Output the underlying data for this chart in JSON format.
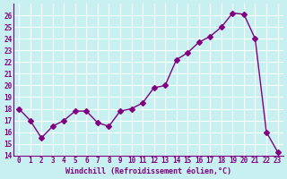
{
  "x": [
    0,
    1,
    2,
    3,
    4,
    5,
    6,
    7,
    8,
    9,
    10,
    11,
    12,
    13,
    14,
    15,
    16,
    17,
    18,
    19,
    20,
    21,
    22,
    23
  ],
  "y": [
    18,
    17,
    15.5,
    16.5,
    17,
    17.8,
    17.8,
    16.8,
    16.5,
    17.8,
    18,
    18.5,
    19.8,
    20,
    22.2,
    22.8,
    23.7,
    24.2,
    25.0,
    26.2,
    26.1,
    24.0,
    16.0,
    14.3
  ],
  "line_color": "#800080",
  "marker": "D",
  "marker_size": 3,
  "bg_color": "#c8f0f0",
  "grid_color": "#ffffff",
  "xlabel": "Windchill (Refroidissement éolien,°C)",
  "xlabel_color": "#800080",
  "ylabel_color": "#800080",
  "tick_color": "#800080",
  "ylim": [
    14,
    27
  ],
  "xlim": [
    -0.5,
    23.5
  ],
  "yticks": [
    14,
    15,
    16,
    17,
    18,
    19,
    20,
    21,
    22,
    23,
    24,
    25,
    26
  ],
  "xticks": [
    0,
    1,
    2,
    3,
    4,
    5,
    6,
    7,
    8,
    9,
    10,
    11,
    12,
    13,
    14,
    15,
    16,
    17,
    18,
    19,
    20,
    21,
    22,
    23
  ],
  "font_family": "monospace"
}
